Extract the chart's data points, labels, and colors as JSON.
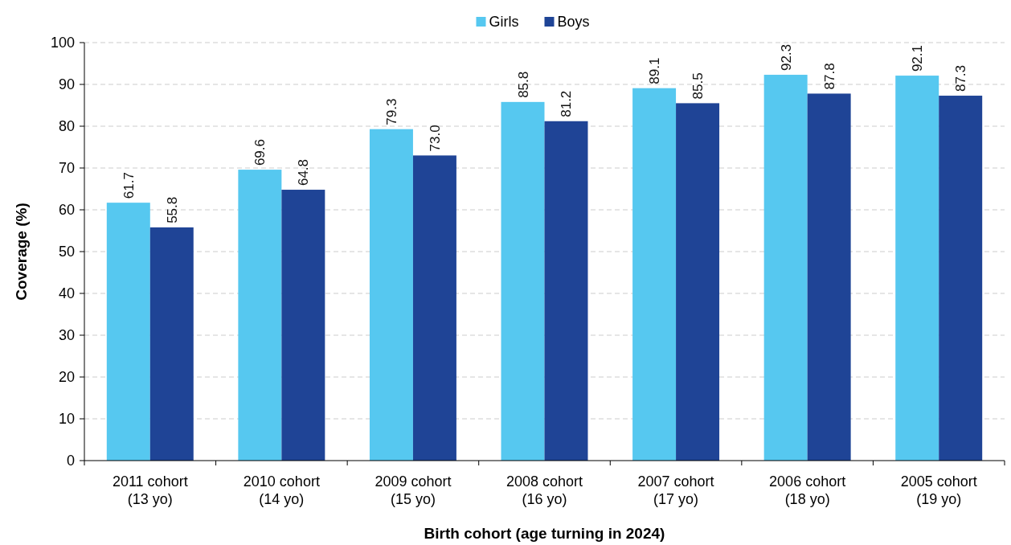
{
  "chart_data": {
    "type": "bar",
    "xlabel": "Birth cohort (age turning in 2024)",
    "ylabel": "Coverage (%)",
    "categories": [
      "2011 cohort\n(13 yo)",
      "2010 cohort\n(14 yo)",
      "2009 cohort\n(15 yo)",
      "2008 cohort\n(16 yo)",
      "2007 cohort\n(17 yo)",
      "2006 cohort\n(18 yo)",
      "2005 cohort\n(19 yo)"
    ],
    "series": [
      {
        "name": "Girls",
        "color": "#56c8f0",
        "values": [
          61.7,
          69.6,
          79.3,
          85.8,
          89.1,
          92.3,
          92.1
        ],
        "value_labels": [
          "61.7",
          "69.6",
          "79.3",
          "85.8",
          "89.1",
          "92.3",
          "92.1"
        ]
      },
      {
        "name": "Boys",
        "color": "#1f4496",
        "values": [
          55.8,
          64.8,
          73.0,
          81.2,
          85.5,
          87.8,
          87.3
        ],
        "value_labels": [
          "55.8",
          "64.8",
          "73.0",
          "81.2",
          "85.5",
          "87.8",
          "87.3"
        ]
      }
    ],
    "ylim": [
      0,
      100
    ],
    "yticks": [
      0,
      10,
      20,
      30,
      40,
      50,
      60,
      70,
      80,
      90,
      100
    ],
    "grid": "y",
    "legend": "top"
  }
}
